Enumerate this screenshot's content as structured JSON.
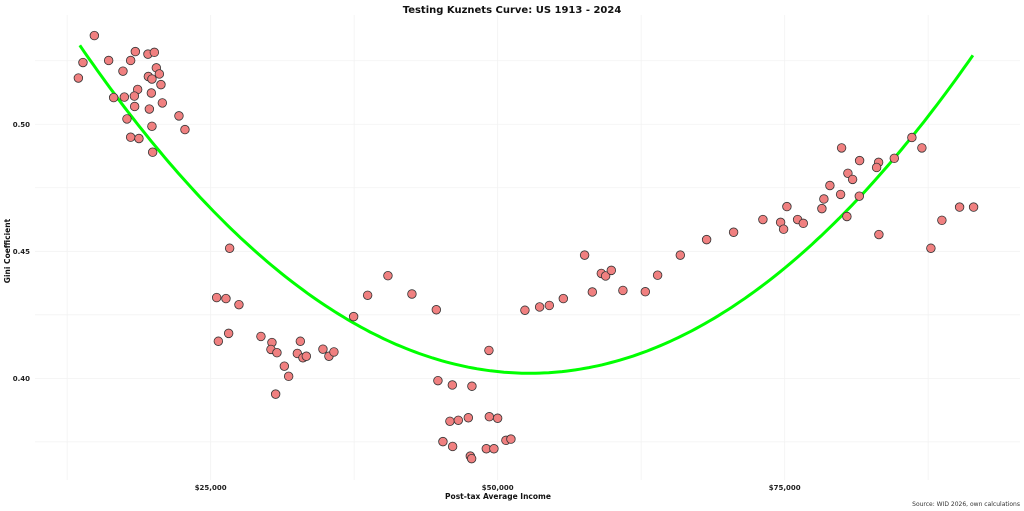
{
  "chart_data": {
    "type": "scatter",
    "title": "Testing Kuznets Curve: US 1913 - 2024",
    "xlabel": "Post-tax Average Income",
    "ylabel": "Gini Coefficient",
    "caption": "Source: WID 2026, own calculations",
    "xlim": [
      9700,
      95500
    ],
    "ylim": [
      0.36,
      0.543
    ],
    "x_ticks": [
      25000,
      50000,
      75000
    ],
    "x_tick_labels": [
      "$25,000",
      "$50,000",
      "$75,000"
    ],
    "y_ticks": [
      0.4,
      0.45,
      0.5
    ],
    "y_tick_labels": [
      "0.40",
      "0.45",
      "0.50"
    ],
    "grid": true,
    "legend": "none",
    "colors": {
      "points": "#f08080",
      "point_edge": "#333333",
      "fit": "#00ff00"
    },
    "fit": {
      "type": "quadratic",
      "vertex_x": 52800,
      "vertex_y": 0.402,
      "a": 8.4e-11,
      "x_range": [
        13600,
        91400
      ]
    },
    "points": [
      [
        14870,
        0.5349
      ],
      [
        13877,
        0.5243
      ],
      [
        13477,
        0.5182
      ],
      [
        16116,
        0.5251
      ],
      [
        18441,
        0.5286
      ],
      [
        18032,
        0.5251
      ],
      [
        19539,
        0.5276
      ],
      [
        20096,
        0.5283
      ],
      [
        17361,
        0.5209
      ],
      [
        20270,
        0.5222
      ],
      [
        20532,
        0.5198
      ],
      [
        19574,
        0.5188
      ],
      [
        19887,
        0.5178
      ],
      [
        20671,
        0.5156
      ],
      [
        18642,
        0.5137
      ],
      [
        16551,
        0.5105
      ],
      [
        17483,
        0.5107
      ],
      [
        18354,
        0.5111
      ],
      [
        19835,
        0.5123
      ],
      [
        20793,
        0.5084
      ],
      [
        18380,
        0.507
      ],
      [
        19661,
        0.506
      ],
      [
        17710,
        0.5021
      ],
      [
        22239,
        0.5033
      ],
      [
        19887,
        0.4992
      ],
      [
        22762,
        0.4979
      ],
      [
        18032,
        0.4949
      ],
      [
        18755,
        0.4944
      ],
      [
        19948,
        0.489
      ],
      [
        26655,
        0.4512
      ],
      [
        25523,
        0.4318
      ],
      [
        26333,
        0.4314
      ],
      [
        27465,
        0.429
      ],
      [
        25671,
        0.4146
      ],
      [
        26568,
        0.4177
      ],
      [
        29381,
        0.4165
      ],
      [
        30339,
        0.4141
      ],
      [
        30252,
        0.4114
      ],
      [
        30775,
        0.4101
      ],
      [
        32813,
        0.4146
      ],
      [
        32552,
        0.4098
      ],
      [
        33039,
        0.4081
      ],
      [
        33335,
        0.4087
      ],
      [
        31419,
        0.4048
      ],
      [
        31794,
        0.4008
      ],
      [
        30662,
        0.3938
      ],
      [
        34781,
        0.4115
      ],
      [
        35304,
        0.4087
      ],
      [
        35739,
        0.4104
      ],
      [
        37455,
        0.4243
      ],
      [
        38675,
        0.4327
      ],
      [
        40443,
        0.4404
      ],
      [
        42533,
        0.4332
      ],
      [
        44658,
        0.427
      ],
      [
        52376,
        0.4268
      ],
      [
        49240,
        0.411
      ],
      [
        44798,
        0.3991
      ],
      [
        46052,
        0.3974
      ],
      [
        47759,
        0.3969
      ],
      [
        45843,
        0.3831
      ],
      [
        46575,
        0.3835
      ],
      [
        47446,
        0.3845
      ],
      [
        49275,
        0.3849
      ],
      [
        49998,
        0.3843
      ],
      [
        45233,
        0.3751
      ],
      [
        46078,
        0.3732
      ],
      [
        47620,
        0.3694
      ],
      [
        47733,
        0.3684
      ],
      [
        49013,
        0.3723
      ],
      [
        49675,
        0.3723
      ],
      [
        50721,
        0.3756
      ],
      [
        51156,
        0.3761
      ],
      [
        53656,
        0.4281
      ],
      [
        54501,
        0.4287
      ],
      [
        55720,
        0.4314
      ],
      [
        57575,
        0.4485
      ],
      [
        58246,
        0.434
      ],
      [
        59030,
        0.4413
      ],
      [
        59405,
        0.4403
      ],
      [
        59901,
        0.4425
      ],
      [
        60911,
        0.4346
      ],
      [
        62862,
        0.4341
      ],
      [
        63934,
        0.4406
      ],
      [
        65911,
        0.4485
      ],
      [
        68202,
        0.4546
      ],
      [
        70553,
        0.4575
      ],
      [
        73105,
        0.4625
      ],
      [
        75196,
        0.4676
      ],
      [
        74647,
        0.4614
      ],
      [
        74908,
        0.4587
      ],
      [
        76128,
        0.4625
      ],
      [
        76624,
        0.461
      ],
      [
        78244,
        0.4668
      ],
      [
        78418,
        0.4706
      ],
      [
        78941,
        0.4759
      ],
      [
        79873,
        0.4724
      ],
      [
        80422,
        0.4637
      ],
      [
        79960,
        0.4907
      ],
      [
        80509,
        0.4807
      ],
      [
        80918,
        0.4783
      ],
      [
        81528,
        0.4857
      ],
      [
        81502,
        0.4717
      ],
      [
        83183,
        0.485
      ],
      [
        83009,
        0.483
      ],
      [
        84550,
        0.4866
      ],
      [
        83209,
        0.4566
      ],
      [
        86083,
        0.4948
      ],
      [
        86954,
        0.4907
      ],
      [
        88696,
        0.4622
      ],
      [
        87738,
        0.4512
      ],
      [
        90238,
        0.4674
      ],
      [
        91457,
        0.4674
      ]
    ]
  }
}
